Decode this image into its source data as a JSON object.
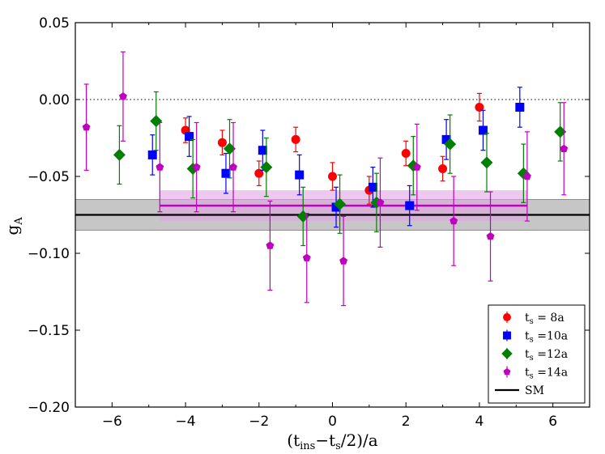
{
  "chart_data": {
    "type": "scatter",
    "xlabel": "(t_ins−t_s/2)/a",
    "ylabel": "g_A",
    "xlim": [
      -7,
      7
    ],
    "ylim": [
      -0.2,
      0.05
    ],
    "x_ticks": [
      -6,
      -4,
      -2,
      0,
      2,
      4,
      6
    ],
    "y_ticks": [
      0.05,
      0.0,
      -0.05,
      -0.1,
      -0.15,
      -0.2
    ],
    "x_tick_labels": [
      "−6",
      "−4",
      "−2",
      "0",
      "2",
      "4",
      "6"
    ],
    "y_tick_labels": [
      "0.05",
      "0.00",
      "−0.05",
      "−0.10",
      "−0.15",
      "−0.20"
    ],
    "zero_line": {
      "y": 0.0,
      "style": "dotted"
    },
    "grid": false,
    "legend_position": "bottom-right",
    "series": [
      {
        "name": "t_s = 8a",
        "legend_main": "t",
        "legend_sub": "s",
        "legend_rest": " = 8a",
        "color": "#ff0000",
        "marker": "circle",
        "points": [
          {
            "x": -4,
            "y": -0.02,
            "err": 0.008
          },
          {
            "x": -3,
            "y": -0.028,
            "err": 0.008
          },
          {
            "x": -2,
            "y": -0.048,
            "err": 0.008
          },
          {
            "x": -1,
            "y": -0.026,
            "err": 0.008
          },
          {
            "x": 0,
            "y": -0.05,
            "err": 0.009
          },
          {
            "x": 1,
            "y": -0.059,
            "err": 0.009
          },
          {
            "x": 2,
            "y": -0.035,
            "err": 0.008
          },
          {
            "x": 3,
            "y": -0.045,
            "err": 0.008
          },
          {
            "x": 4,
            "y": -0.005,
            "err": 0.009
          }
        ],
        "fit": null
      },
      {
        "name": "t_s =10a",
        "legend_main": "t",
        "legend_sub": "s",
        "legend_rest": " =10a",
        "color": "#0000ff",
        "marker": "square",
        "points": [
          {
            "x": -4.9,
            "y": -0.036,
            "err": 0.013
          },
          {
            "x": -3.9,
            "y": -0.024,
            "err": 0.013
          },
          {
            "x": -2.9,
            "y": -0.048,
            "err": 0.013
          },
          {
            "x": -1.9,
            "y": -0.033,
            "err": 0.013
          },
          {
            "x": -0.9,
            "y": -0.049,
            "err": 0.013
          },
          {
            "x": 0.1,
            "y": -0.07,
            "err": 0.013
          },
          {
            "x": 1.1,
            "y": -0.057,
            "err": 0.013
          },
          {
            "x": 2.1,
            "y": -0.069,
            "err": 0.013
          },
          {
            "x": 3.1,
            "y": -0.026,
            "err": 0.013
          },
          {
            "x": 4.1,
            "y": -0.02,
            "err": 0.013
          },
          {
            "x": 5.1,
            "y": -0.005,
            "err": 0.013
          }
        ],
        "fit": null
      },
      {
        "name": "t_s =12a",
        "legend_main": "t",
        "legend_sub": "s",
        "legend_rest": " =12a",
        "color": "#007f00",
        "marker": "diamond",
        "points": [
          {
            "x": -5.8,
            "y": -0.036,
            "err": 0.019
          },
          {
            "x": -4.8,
            "y": -0.014,
            "err": 0.019
          },
          {
            "x": -3.8,
            "y": -0.045,
            "err": 0.019
          },
          {
            "x": -2.8,
            "y": -0.032,
            "err": 0.019
          },
          {
            "x": -1.8,
            "y": -0.044,
            "err": 0.019
          },
          {
            "x": -0.8,
            "y": -0.076,
            "err": 0.019
          },
          {
            "x": 0.2,
            "y": -0.068,
            "err": 0.019
          },
          {
            "x": 1.2,
            "y": -0.067,
            "err": 0.019
          },
          {
            "x": 2.2,
            "y": -0.043,
            "err": 0.019
          },
          {
            "x": 3.2,
            "y": -0.029,
            "err": 0.019
          },
          {
            "x": 4.2,
            "y": -0.041,
            "err": 0.019
          },
          {
            "x": 5.2,
            "y": -0.048,
            "err": 0.019
          },
          {
            "x": 6.2,
            "y": -0.021,
            "err": 0.019
          }
        ],
        "fit": null
      },
      {
        "name": "t_s =14a",
        "legend_main": "t",
        "legend_sub": "s",
        "legend_rest": " =14a",
        "color": "#bf00bf",
        "marker": "pentagon",
        "points": [
          {
            "x": -6.7,
            "y": -0.018,
            "err": 0.028
          },
          {
            "x": -5.7,
            "y": 0.002,
            "err": 0.029
          },
          {
            "x": -4.7,
            "y": -0.044,
            "err": 0.029
          },
          {
            "x": -3.7,
            "y": -0.044,
            "err": 0.029
          },
          {
            "x": -2.7,
            "y": -0.044,
            "err": 0.029
          },
          {
            "x": -1.7,
            "y": -0.095,
            "err": 0.029
          },
          {
            "x": -0.7,
            "y": -0.103,
            "err": 0.029
          },
          {
            "x": 0.3,
            "y": -0.105,
            "err": 0.029
          },
          {
            "x": 1.3,
            "y": -0.067,
            "err": 0.029
          },
          {
            "x": 2.3,
            "y": -0.044,
            "err": 0.028
          },
          {
            "x": 3.3,
            "y": -0.079,
            "err": 0.029
          },
          {
            "x": 4.3,
            "y": -0.089,
            "err": 0.029
          },
          {
            "x": 5.3,
            "y": -0.05,
            "err": 0.029
          },
          {
            "x": 6.3,
            "y": -0.032,
            "err": 0.03
          }
        ],
        "fit": {
          "x_start": -4.7,
          "x_end": 5.3,
          "y": -0.069,
          "err": 0.01,
          "color": "#bf00bf",
          "band_color": "#e3a3e3"
        }
      }
    ],
    "sm_line": {
      "name": "SM",
      "y": -0.075,
      "err": 0.01,
      "color": "#000000",
      "band_color": "#b3b3b3"
    }
  }
}
